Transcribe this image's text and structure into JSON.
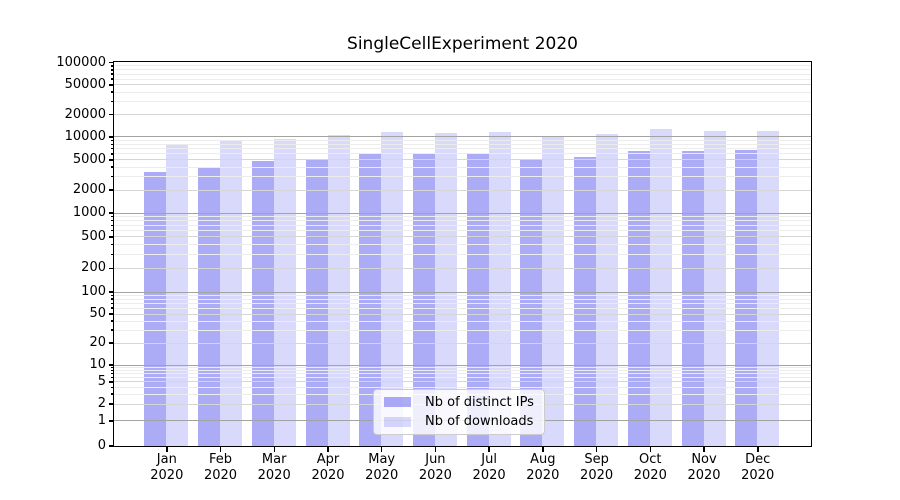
{
  "title": "SingleCellExperiment 2020",
  "chart_data": {
    "type": "bar",
    "title": "SingleCellExperiment 2020",
    "categories": [
      "Jan 2020",
      "Feb 2020",
      "Mar 2020",
      "Apr 2020",
      "May 2020",
      "Jun 2020",
      "Jul 2020",
      "Aug 2020",
      "Sep 2020",
      "Oct 2020",
      "Nov 2020",
      "Dec 2020"
    ],
    "x_tick_months": [
      "Jan",
      "Feb",
      "Mar",
      "Apr",
      "May",
      "Jun",
      "Jul",
      "Aug",
      "Sep",
      "Oct",
      "Nov",
      "Dec"
    ],
    "x_tick_year": "2020",
    "series": [
      {
        "name": "Nb of distinct IPs",
        "color": "#6666ee",
        "alpha": 0.55,
        "values": [
          3500,
          4000,
          4800,
          5100,
          6200,
          6000,
          6100,
          5100,
          5400,
          6500,
          6500,
          6700
        ]
      },
      {
        "name": "Nb of downloads",
        "color": "#6666ee",
        "alpha": 0.25,
        "values": [
          8100,
          9100,
          9500,
          10600,
          11800,
          11200,
          11500,
          10400,
          11100,
          12600,
          12100,
          12000
        ]
      }
    ],
    "yscale": "log (with 0 baseline)",
    "ylim": [
      0,
      100000
    ],
    "yticks": [
      0,
      1,
      2,
      5,
      10,
      20,
      50,
      100,
      200,
      500,
      1000,
      2000,
      5000,
      10000,
      20000,
      50000,
      100000
    ],
    "grid": true,
    "grid_on_top_of_bars": true,
    "legend_position": "lower center",
    "axis_color": "#000000",
    "grid_decade_color": "#a3a3a3",
    "grid_mid_color": "#d6d6d6",
    "grid_minor_color": "#ececec"
  }
}
